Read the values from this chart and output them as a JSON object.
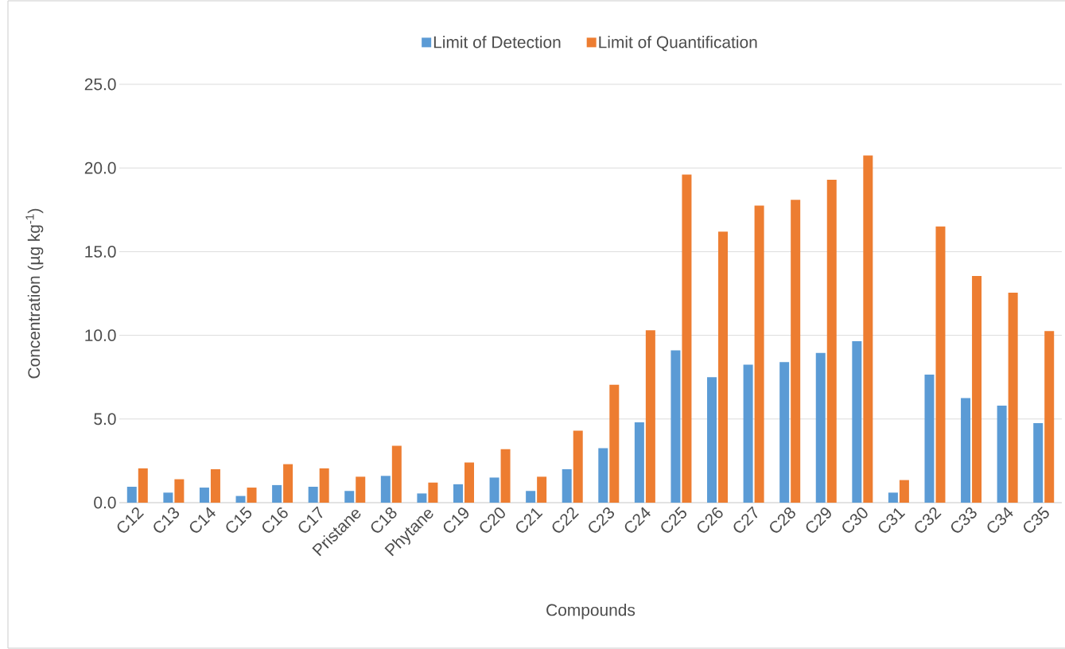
{
  "chart_data": {
    "type": "bar",
    "xlabel": "Compounds",
    "ylabel": "Concentration (µg kg$^{-1}$)",
    "categories": [
      "C12",
      "C13",
      "C14",
      "C15",
      "C16",
      "C17",
      "Pristane",
      "C18",
      "Phytane",
      "C19",
      "C20",
      "C21",
      "C22",
      "C23",
      "C24",
      "C25",
      "C26",
      "C27",
      "C28",
      "C29",
      "C30",
      "C31",
      "C32",
      "C33",
      "C34",
      "C35"
    ],
    "series": [
      {
        "name": "Limit of Detection",
        "color": "#5b9bd5",
        "values": [
          0.95,
          0.6,
          0.9,
          0.4,
          1.05,
          0.95,
          0.7,
          1.6,
          0.55,
          1.1,
          1.5,
          0.7,
          2.0,
          3.25,
          4.8,
          9.1,
          7.5,
          8.25,
          8.4,
          8.95,
          9.65,
          0.6,
          7.65,
          6.25,
          5.8,
          4.75
        ]
      },
      {
        "name": "Limit of Quantification",
        "color": "#ed7d31",
        "values": [
          2.05,
          1.4,
          2.0,
          0.9,
          2.3,
          2.05,
          1.55,
          3.4,
          1.2,
          2.4,
          3.2,
          1.55,
          4.3,
          7.05,
          10.3,
          19.6,
          16.2,
          17.75,
          18.1,
          19.3,
          20.75,
          1.35,
          16.5,
          13.55,
          12.55,
          10.25
        ]
      }
    ],
    "ylim": [
      0,
      25
    ],
    "yticks": [
      {
        "value": 0,
        "label": "0.0"
      },
      {
        "value": 5,
        "label": "5.0"
      },
      {
        "value": 10,
        "label": "10.0"
      },
      {
        "value": 15,
        "label": "15.0"
      },
      {
        "value": 20,
        "label": "20.0"
      },
      {
        "value": 25,
        "label": "25.0"
      }
    ],
    "grid": "y",
    "legend": "top"
  }
}
